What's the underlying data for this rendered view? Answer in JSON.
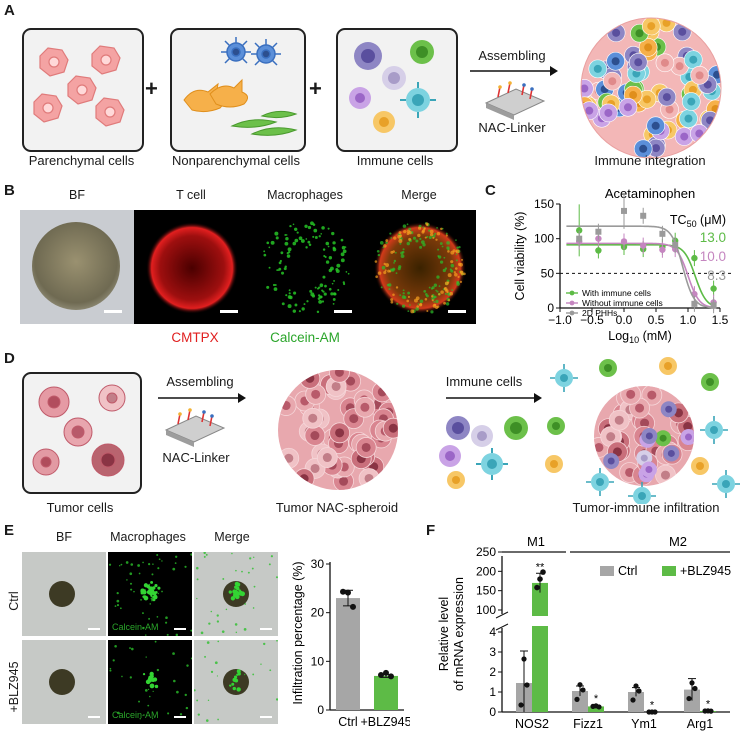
{
  "panelA": {
    "label": "A",
    "captions": [
      "Parenchymal cells",
      "Nonparenchymal cells",
      "Immune cells",
      "Immune integration"
    ],
    "plus": "+",
    "arrow_label": "Assembling",
    "linker_label": "NAC-Linker"
  },
  "panelB": {
    "label": "B",
    "titles": [
      "BF",
      "T cell",
      "Macrophages",
      "Merge"
    ],
    "stain1": "CMTPX",
    "stain2": "Calcein-AM",
    "stain1_color": "#e01e1e",
    "stain2_color": "#2aa52a"
  },
  "panelC": {
    "label": "C",
    "chart_data": {
      "type": "line",
      "title": "Acetaminophen",
      "xlabel": "Log10 (mM)",
      "ylabel": "Cell viability (%)",
      "xlim": [
        -1.0,
        1.5
      ],
      "ylim": [
        0,
        150
      ],
      "xticks": [
        "−1.0",
        "−0.5",
        "0.0",
        "0.5",
        "1.0",
        "1.5"
      ],
      "yticks": [
        "0",
        "50",
        "100",
        "150"
      ],
      "reference_line": 50,
      "tc50_header": "TC50 (μM)",
      "tc50_header_main": "TC",
      "tc50_header_sub": "50",
      "tc50_header_unit": " (μM)",
      "series": [
        {
          "name": "With immune cells",
          "color": "#5dbb46",
          "tc50": "13.0",
          "x": [
            -0.7,
            -0.4,
            0.0,
            0.3,
            0.6,
            0.8,
            1.1,
            1.4
          ],
          "y": [
            112,
            83,
            88,
            85,
            88,
            97,
            72,
            28
          ]
        },
        {
          "name": "Without immune cells",
          "color": "#c586c0",
          "tc50": "10.0",
          "x": [
            -0.7,
            -0.4,
            0.0,
            0.3,
            0.6,
            0.8,
            1.1,
            1.4
          ],
          "y": [
            96,
            100,
            96,
            90,
            84,
            85,
            20,
            8
          ]
        },
        {
          "name": "2D PHHs",
          "color": "#9a9a9a",
          "tc50": "8.3",
          "x": [
            -0.7,
            -0.4,
            0.0,
            0.3,
            0.6,
            0.8,
            1.1,
            1.4
          ],
          "y": [
            100,
            110,
            140,
            133,
            107,
            91,
            6,
            4
          ]
        }
      ]
    }
  },
  "panelD": {
    "label": "D",
    "captions": [
      "Tumor cells",
      "Tumor NAC-spheroid",
      "Tumor-immune infiltration"
    ],
    "arrow1_label": "Assembling",
    "linker_label": "NAC-Linker",
    "arrow2_label": "Immune cells"
  },
  "panelE": {
    "label": "E",
    "titles": [
      "BF",
      "Macrophages",
      "Merge"
    ],
    "rows": [
      "Ctrl",
      "+BLZ945"
    ],
    "stain": "Calcein-AM",
    "chart_data": {
      "type": "bar",
      "categories": [
        "Ctrl",
        "+BLZ945"
      ],
      "values": [
        23.0,
        7.0
      ],
      "errors": [
        1.6,
        0.3
      ],
      "points": [
        [
          24.3,
          23.5,
          21.2
        ],
        [
          7.2,
          7.0,
          6.9
        ]
      ],
      "colors": [
        "#a6a6a6",
        "#5dbb46"
      ],
      "ylabel": "Infiltration percentage (%)",
      "ylim": [
        0,
        30
      ],
      "yticks": [
        "0",
        "10",
        "20",
        "30"
      ]
    }
  },
  "panelF": {
    "label": "F",
    "groups": [
      "M1",
      "M2"
    ],
    "chart_data": {
      "type": "bar",
      "categories": [
        "NOS2",
        "Fizz1",
        "Ym1",
        "Arg1"
      ],
      "series": [
        {
          "name": "Ctrl",
          "color": "#a6a6a6",
          "values": [
            1.45,
            1.05,
            1.0,
            1.12
          ],
          "errors": [
            1.6,
            0.25,
            0.22,
            0.55
          ]
        },
        {
          "name": "+BLZ945",
          "color": "#5dbb46",
          "values": [
            170,
            0.28,
            0.0,
            0.05
          ],
          "errors": [
            25,
            0.06,
            0.02,
            0.03
          ]
        }
      ],
      "significance": [
        "**",
        "*",
        "*",
        "*"
      ],
      "ylabel": "Relative level of mRNA expression",
      "ylabel_line1": "Relative level",
      "ylabel_line2": "of mRNA expression",
      "ylim_low": [
        0,
        4
      ],
      "ylim_high": [
        100,
        250
      ],
      "yticks_low": [
        "0",
        "1",
        "2",
        "3",
        "4"
      ],
      "yticks_high": [
        "100",
        "150",
        "200",
        "250"
      ]
    }
  }
}
